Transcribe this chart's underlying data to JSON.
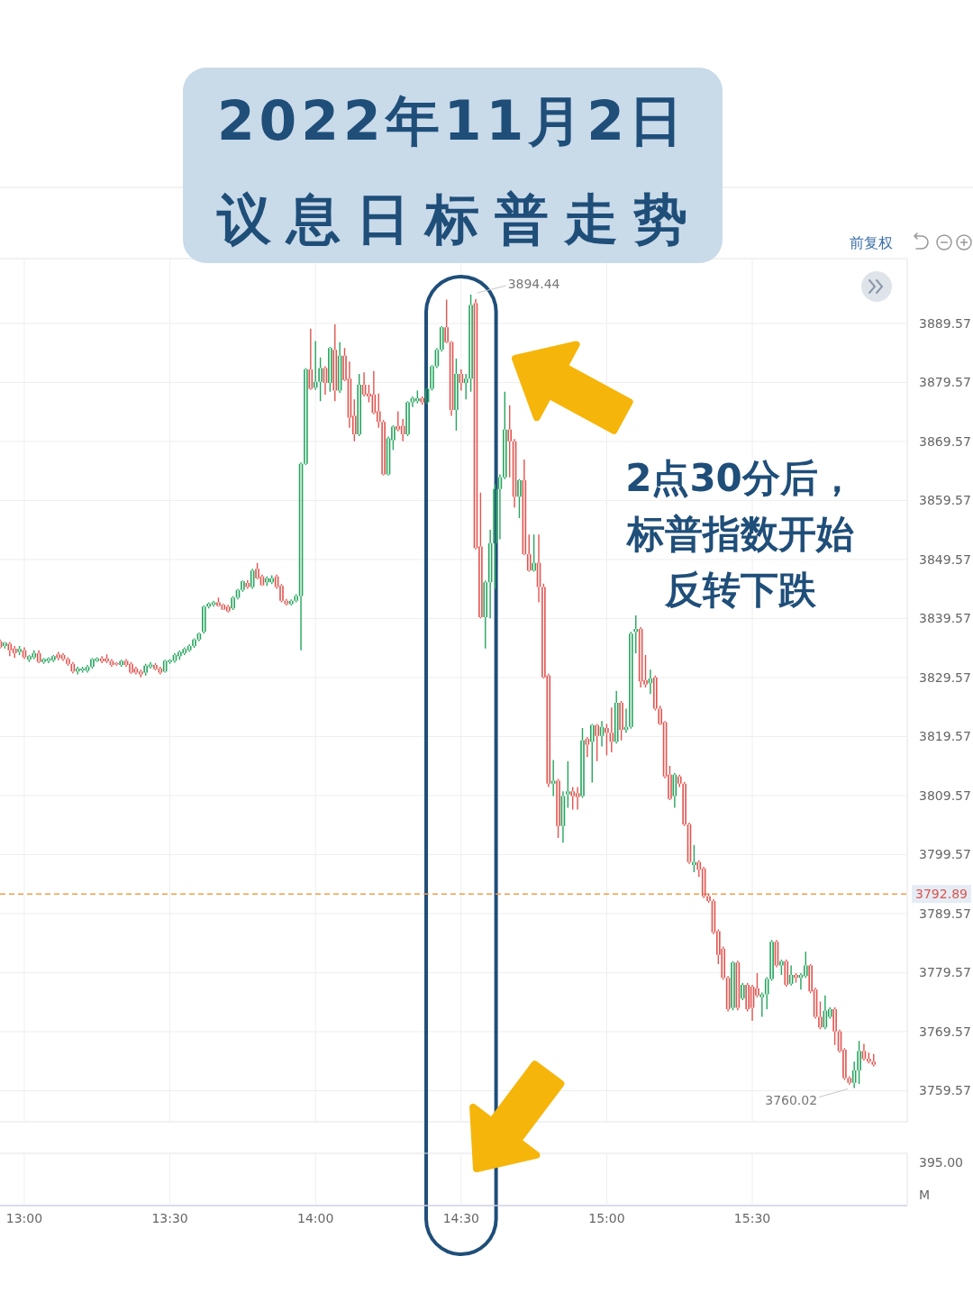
{
  "chart_data": {
    "type": "candlestick",
    "title": "2022年11月2日",
    "subtitle": "议息日标普走势",
    "x": [
      12.9167,
      12.9333,
      12.95,
      12.9667,
      12.9833,
      13,
      13.0167,
      13.0333,
      13.05,
      13.0667,
      13.0833,
      13.1,
      13.1167,
      13.1333,
      13.15,
      13.1667,
      13.1833,
      13.2,
      13.2167,
      13.2333,
      13.25,
      13.2667,
      13.2833,
      13.3,
      13.3167,
      13.3333,
      13.35,
      13.3667,
      13.3833,
      13.4,
      13.4167,
      13.4333,
      13.45,
      13.4667,
      13.4833,
      13.5,
      13.5167,
      13.5333,
      13.55,
      13.5667,
      13.5833,
      13.6,
      13.6167,
      13.6333,
      13.65,
      13.6667,
      13.6833,
      13.7,
      13.7167,
      13.7333,
      13.75,
      13.7667,
      13.7833,
      13.8,
      13.8167,
      13.8333,
      13.85,
      13.8667,
      13.8833,
      13.9,
      13.9167,
      13.9333,
      13.95,
      13.9667,
      13.9833,
      14,
      14.0167,
      14.0333,
      14.05,
      14.0667,
      14.0833,
      14.1,
      14.1167,
      14.1333,
      14.15,
      14.1667,
      14.1833,
      14.2,
      14.2167,
      14.2333,
      14.25,
      14.2667,
      14.2833,
      14.3,
      14.3167,
      14.3333,
      14.35,
      14.3667,
      14.3833,
      14.4,
      14.4167,
      14.4333,
      14.45,
      14.4667,
      14.4833,
      14.5,
      14.5167,
      14.5333,
      14.55,
      14.5667,
      14.5833,
      14.6,
      14.6167,
      14.6333,
      14.65,
      14.6667,
      14.6833,
      14.7,
      14.7167,
      14.7333,
      14.75,
      14.7667,
      14.7833,
      14.8,
      14.8167,
      14.8333,
      14.85,
      14.8667,
      14.8833,
      14.9,
      14.9167,
      14.9333,
      14.95,
      14.9667,
      14.9833,
      15,
      15.0167,
      15.0333,
      15.05,
      15.0667,
      15.0833,
      15.1,
      15.1167,
      15.1333,
      15.15,
      15.1667,
      15.1833,
      15.2,
      15.2167,
      15.2333,
      15.25,
      15.2667,
      15.2833,
      15.3,
      15.3167,
      15.3333,
      15.35,
      15.3667,
      15.3833,
      15.4,
      15.4167,
      15.4333,
      15.45,
      15.4667,
      15.4833,
      15.5,
      15.5167,
      15.5333,
      15.55,
      15.5667,
      15.5833,
      15.6,
      15.6167,
      15.6333,
      15.65,
      15.6667,
      15.6833,
      15.7,
      15.7167,
      15.7333,
      15.75,
      15.7667,
      15.7833,
      15.8,
      15.8167,
      15.8333,
      15.85,
      15.8667,
      15.8833,
      15.9,
      15.9167
    ],
    "ohlc": [
      [
        3835.7,
        3836.0,
        3834.5,
        3834.7
      ],
      [
        3834.9,
        3835.6,
        3834.5,
        3835.5
      ],
      [
        3835.3,
        3835.6,
        3833.2,
        3834.2
      ],
      [
        3834.5,
        3834.9,
        3832.9,
        3833.7
      ],
      [
        3833.9,
        3834.9,
        3833.4,
        3834.4
      ],
      [
        3834.2,
        3834.7,
        3832.7,
        3833.0
      ],
      [
        3832.6,
        3833.4,
        3832.2,
        3833.2
      ],
      [
        3833.0,
        3834.2,
        3832.7,
        3833.7
      ],
      [
        3833.7,
        3834.2,
        3832.0,
        3832.2
      ],
      [
        3832.2,
        3832.9,
        3831.9,
        3832.7
      ],
      [
        3832.4,
        3833.0,
        3832.0,
        3832.8
      ],
      [
        3832.5,
        3833.4,
        3832.2,
        3833.2
      ],
      [
        3833.5,
        3833.9,
        3832.5,
        3832.9
      ],
      [
        3833.4,
        3833.7,
        3832.4,
        3832.7
      ],
      [
        3832.7,
        3833.0,
        3831.6,
        3831.9
      ],
      [
        3831.9,
        3832.2,
        3830.3,
        3830.6
      ],
      [
        3830.6,
        3831.4,
        3830.1,
        3831.1
      ],
      [
        3830.8,
        3831.4,
        3830.4,
        3831.1
      ],
      [
        3830.7,
        3831.7,
        3830.4,
        3831.4
      ],
      [
        3831.4,
        3832.9,
        3831.1,
        3832.7
      ],
      [
        3832.4,
        3833.0,
        3832.2,
        3832.8
      ],
      [
        3832.8,
        3833.2,
        3832.0,
        3832.3
      ],
      [
        3832.8,
        3833.5,
        3832.0,
        3832.3
      ],
      [
        3832.4,
        3832.7,
        3831.4,
        3831.7
      ],
      [
        3832.0,
        3832.2,
        3831.6,
        3831.8
      ],
      [
        3831.7,
        3832.6,
        3831.4,
        3832.4
      ],
      [
        3832.4,
        3832.7,
        3831.4,
        3831.7
      ],
      [
        3831.9,
        3832.2,
        3830.2,
        3830.4
      ],
      [
        3831.1,
        3831.4,
        3830.1,
        3830.4
      ],
      [
        3830.6,
        3830.9,
        3829.6,
        3830.1
      ],
      [
        3830.4,
        3831.9,
        3829.9,
        3831.6
      ],
      [
        3831.4,
        3832.2,
        3831.1,
        3831.8
      ],
      [
        3831.7,
        3832.0,
        3830.8,
        3831.0
      ],
      [
        3831.1,
        3831.4,
        3830.1,
        3830.4
      ],
      [
        3830.6,
        3832.6,
        3830.4,
        3832.4
      ],
      [
        3832.2,
        3832.7,
        3831.9,
        3832.5
      ],
      [
        3832.4,
        3833.7,
        3832.1,
        3833.4
      ],
      [
        3833.2,
        3834.2,
        3832.6,
        3833.9
      ],
      [
        3833.7,
        3834.7,
        3833.4,
        3834.4
      ],
      [
        3834.2,
        3835.2,
        3833.9,
        3834.9
      ],
      [
        3834.9,
        3836.2,
        3834.6,
        3836.0
      ],
      [
        3836.0,
        3837.2,
        3835.7,
        3837.0
      ],
      [
        3837.3,
        3841.8,
        3837.0,
        3841.6
      ],
      [
        3841.6,
        3842.3,
        3841.3,
        3842.1
      ],
      [
        3841.9,
        3842.6,
        3841.6,
        3842.3
      ],
      [
        3842.3,
        3843.1,
        3841.6,
        3841.7
      ],
      [
        3841.9,
        3842.1,
        3841.0,
        3841.1
      ],
      [
        3841.6,
        3841.9,
        3840.6,
        3840.8
      ],
      [
        3841.3,
        3843.4,
        3841.0,
        3843.1
      ],
      [
        3843.1,
        3844.6,
        3842.8,
        3844.4
      ],
      [
        3844.4,
        3846.0,
        3844.1,
        3845.9
      ],
      [
        3845.6,
        3846.1,
        3844.6,
        3844.9
      ],
      [
        3844.9,
        3848.0,
        3844.6,
        3847.7
      ],
      [
        3848.0,
        3849.0,
        3846.2,
        3846.4
      ],
      [
        3846.7,
        3847.0,
        3845.1,
        3845.2
      ],
      [
        3845.7,
        3846.7,
        3845.1,
        3846.4
      ],
      [
        3845.7,
        3846.9,
        3845.4,
        3846.4
      ],
      [
        3846.7,
        3847.0,
        3844.6,
        3844.9
      ],
      [
        3845.1,
        3845.4,
        3842.3,
        3842.6
      ],
      [
        3842.6,
        3842.9,
        3841.8,
        3842.0
      ],
      [
        3842.0,
        3842.8,
        3841.8,
        3842.6
      ],
      [
        3842.6,
        3843.7,
        3842.3,
        3843.4
      ],
      [
        3843.4,
        3866.0,
        3834.2,
        3865.8
      ],
      [
        3865.8,
        3882.0,
        3865.6,
        3881.8
      ],
      [
        3881.8,
        3888.7,
        3878.3,
        3878.5
      ],
      [
        3878.7,
        3886.6,
        3878.3,
        3879.7
      ],
      [
        3879.7,
        3883.8,
        3876.4,
        3882.0
      ],
      [
        3882.0,
        3882.3,
        3877.5,
        3879.5
      ],
      [
        3879.5,
        3885.6,
        3878.0,
        3885.4
      ],
      [
        3885.1,
        3889.4,
        3876.4,
        3878.2
      ],
      [
        3878.2,
        3886.4,
        3877.8,
        3884.1
      ],
      [
        3884.1,
        3885.4,
        3879.8,
        3880.0
      ],
      [
        3880.2,
        3883.1,
        3871.9,
        3873.6
      ],
      [
        3873.9,
        3876.7,
        3869.6,
        3870.8
      ],
      [
        3870.8,
        3881.0,
        3870.5,
        3879.2
      ],
      [
        3879.2,
        3881.3,
        3877.2,
        3877.5
      ],
      [
        3877.7,
        3879.2,
        3876.2,
        3877.2
      ],
      [
        3877.5,
        3881.5,
        3874.2,
        3874.4
      ],
      [
        3874.7,
        3877.7,
        3871.9,
        3872.9
      ],
      [
        3872.9,
        3873.2,
        3863.8,
        3864.0
      ],
      [
        3864.0,
        3870.4,
        3863.8,
        3870.1
      ],
      [
        3869.8,
        3872.3,
        3868.1,
        3872.1
      ],
      [
        3872.2,
        3874.7,
        3871.3,
        3871.6
      ],
      [
        3872.2,
        3873.4,
        3869.6,
        3870.8
      ],
      [
        3870.8,
        3876.4,
        3870.5,
        3876.2
      ],
      [
        3876.2,
        3877.2,
        3875.4,
        3876.9
      ],
      [
        3876.4,
        3878.2,
        3876.0,
        3876.9
      ],
      [
        3876.9,
        3877.2,
        3875.8,
        3876.2
      ],
      [
        3876.2,
        3878.7,
        3875.9,
        3878.5
      ],
      [
        3878.5,
        3882.5,
        3878.2,
        3882.3
      ],
      [
        3882.3,
        3885.4,
        3882.0,
        3885.1
      ],
      [
        3885.1,
        3889.1,
        3884.8,
        3888.9
      ],
      [
        3888.9,
        3893.6,
        3886.2,
        3886.4
      ],
      [
        3886.4,
        3886.6,
        3873.9,
        3874.9
      ],
      [
        3874.9,
        3883.6,
        3871.4,
        3881.0
      ],
      [
        3881.0,
        3881.8,
        3878.2,
        3879.5
      ],
      [
        3879.5,
        3881.0,
        3876.7,
        3880.2
      ],
      [
        3880.2,
        3894.44,
        3878.0,
        3892.7
      ],
      [
        3893.0,
        3893.7,
        3851.3,
        3851.5
      ],
      [
        3851.8,
        3860.9,
        3839.6,
        3839.8
      ],
      [
        3839.8,
        3846.0,
        3834.5,
        3845.7
      ],
      [
        3845.7,
        3854.6,
        3839.6,
        3852.3
      ],
      [
        3852.3,
        3862.3,
        3844.6,
        3861.5
      ],
      [
        3861.5,
        3864.0,
        3853.0,
        3863.5
      ],
      [
        3863.5,
        3878.0,
        3863.2,
        3871.6
      ],
      [
        3871.6,
        3875.7,
        3863.5,
        3869.6
      ],
      [
        3869.6,
        3870.0,
        3858.4,
        3860.2
      ],
      [
        3860.2,
        3863.2,
        3856.6,
        3863.0
      ],
      [
        3863.0,
        3866.5,
        3850.3,
        3850.5
      ],
      [
        3850.5,
        3853.8,
        3847.5,
        3847.7
      ],
      [
        3847.7,
        3853.8,
        3847.5,
        3849.0
      ],
      [
        3849.0,
        3853.8,
        3842.3,
        3844.9
      ],
      [
        3844.9,
        3845.5,
        3829.4,
        3829.6
      ],
      [
        3829.9,
        3830.2,
        3811.0,
        3811.6
      ],
      [
        3811.6,
        3815.6,
        3809.5,
        3812.1
      ],
      [
        3812.1,
        3812.4,
        3802.4,
        3804.4
      ],
      [
        3804.4,
        3810.3,
        3801.6,
        3809.5
      ],
      [
        3809.8,
        3815.4,
        3807.5,
        3810.3
      ],
      [
        3810.3,
        3811.0,
        3807.2,
        3809.5
      ],
      [
        3810.0,
        3811.0,
        3807.2,
        3809.3
      ],
      [
        3809.5,
        3821.0,
        3809.2,
        3818.9
      ],
      [
        3819.2,
        3819.5,
        3816.1,
        3818.2
      ],
      [
        3818.7,
        3821.7,
        3811.8,
        3821.5
      ],
      [
        3821.5,
        3821.7,
        3815.4,
        3819.7
      ],
      [
        3819.7,
        3822.2,
        3817.9,
        3821.2
      ],
      [
        3821.0,
        3821.7,
        3816.4,
        3820.2
      ],
      [
        3820.2,
        3824.5,
        3816.9,
        3818.7
      ],
      [
        3818.7,
        3827.3,
        3818.4,
        3825.3
      ],
      [
        3825.3,
        3825.6,
        3818.9,
        3820.7
      ],
      [
        3820.7,
        3824.3,
        3820.2,
        3821.2
      ],
      [
        3821.2,
        3837.3,
        3820.9,
        3837.0
      ],
      [
        3837.3,
        3840.1,
        3833.7,
        3837.8
      ],
      [
        3837.8,
        3838.1,
        3827.9,
        3828.9
      ],
      [
        3829.1,
        3833.4,
        3827.9,
        3828.4
      ],
      [
        3828.6,
        3830.9,
        3826.8,
        3829.4
      ],
      [
        3829.6,
        3829.9,
        3824.0,
        3824.3
      ],
      [
        3824.3,
        3824.8,
        3821.5,
        3821.7
      ],
      [
        3822.0,
        3822.2,
        3812.5,
        3812.8
      ],
      [
        3813.1,
        3814.6,
        3808.8,
        3809.0
      ],
      [
        3809.5,
        3813.4,
        3807.5,
        3813.1
      ],
      [
        3812.8,
        3813.1,
        3811.0,
        3811.6
      ],
      [
        3811.6,
        3811.9,
        3804.4,
        3804.7
      ],
      [
        3804.7,
        3805.0,
        3798.0,
        3798.3
      ],
      [
        3797.8,
        3801.2,
        3796.6,
        3798.3
      ],
      [
        3798.3,
        3798.6,
        3795.8,
        3797.0
      ],
      [
        3797.2,
        3797.5,
        3792.2,
        3792.5
      ],
      [
        3792.5,
        3793.0,
        3791.4,
        3791.7
      ],
      [
        3791.7,
        3792.0,
        3786.1,
        3786.4
      ],
      [
        3786.6,
        3786.9,
        3781.0,
        3782.6
      ],
      [
        3783.6,
        3784.0,
        3778.4,
        3778.7
      ],
      [
        3778.7,
        3779.0,
        3773.0,
        3773.4
      ],
      [
        3773.6,
        3781.5,
        3773.2,
        3781.3
      ],
      [
        3781.3,
        3781.6,
        3773.2,
        3773.6
      ],
      [
        3775.2,
        3777.8,
        3774.9,
        3777.5
      ],
      [
        3777.5,
        3777.8,
        3773.0,
        3773.4
      ],
      [
        3777.2,
        3777.5,
        3771.4,
        3773.6
      ],
      [
        3776.9,
        3779.5,
        3775.4,
        3775.7
      ],
      [
        3775.4,
        3776.2,
        3772.1,
        3775.9
      ],
      [
        3775.9,
        3778.8,
        3773.4,
        3778.5
      ],
      [
        3778.5,
        3785.1,
        3778.2,
        3784.8
      ],
      [
        3784.8,
        3785.1,
        3780.5,
        3780.8
      ],
      [
        3780.8,
        3781.8,
        3779.2,
        3781.5
      ],
      [
        3781.5,
        3781.8,
        3777.2,
        3777.5
      ],
      [
        3777.7,
        3780.8,
        3777.4,
        3779.2
      ],
      [
        3779.2,
        3779.5,
        3777.9,
        3778.7
      ],
      [
        3778.7,
        3779.5,
        3776.7,
        3779.2
      ],
      [
        3779.0,
        3783.1,
        3778.7,
        3780.8
      ],
      [
        3780.8,
        3781.0,
        3776.1,
        3776.4
      ],
      [
        3776.7,
        3777.0,
        3771.8,
        3772.1
      ],
      [
        3772.1,
        3774.7,
        3770.0,
        3770.3
      ],
      [
        3770.3,
        3775.7,
        3770.0,
        3773.1
      ],
      [
        3772.1,
        3773.7,
        3771.8,
        3773.4
      ],
      [
        3773.4,
        3773.7,
        3767.3,
        3769.6
      ],
      [
        3769.6,
        3769.9,
        3766.0,
        3766.3
      ],
      [
        3766.5,
        3766.8,
        3761.4,
        3761.7
      ],
      [
        3761.7,
        3762.0,
        3760.6,
        3760.9
      ],
      [
        3760.9,
        3764.5,
        3760.02,
        3763.0
      ],
      [
        3763.0,
        3768.0,
        3760.7,
        3766.3
      ],
      [
        3766.3,
        3767.5,
        3764.7,
        3765.0
      ],
      [
        3765.0,
        3766.0,
        3764.2,
        3764.5
      ],
      [
        3764.5,
        3765.8,
        3763.7,
        3764.0
      ]
    ],
    "colors": [
      "#e2544f",
      "#26a55e",
      "#e2544f",
      "#e2544f",
      "#26a55e",
      "#e2544f",
      "#26a55e",
      "#26a55e",
      "#e2544f",
      "#26a55e",
      "#26a55e",
      "#26a55e",
      "#e2544f",
      "#e2544f",
      "#e2544f",
      "#e2544f",
      "#26a55e",
      "#26a55e",
      "#26a55e",
      "#26a55e",
      "#26a55e",
      "#e2544f",
      "#e2544f",
      "#e2544f",
      "#e2544f",
      "#26a55e",
      "#e2544f",
      "#e2544f",
      "#e2544f",
      "#e2544f",
      "#26a55e",
      "#26a55e",
      "#e2544f",
      "#e2544f",
      "#26a55e",
      "#26a55e",
      "#26a55e",
      "#26a55e",
      "#26a55e",
      "#26a55e",
      "#26a55e",
      "#26a55e",
      "#26a55e",
      "#26a55e",
      "#26a55e",
      "#e2544f",
      "#e2544f",
      "#e2544f",
      "#26a55e",
      "#26a55e",
      "#26a55e",
      "#e2544f",
      "#26a55e",
      "#e2544f",
      "#e2544f",
      "#26a55e",
      "#26a55e",
      "#e2544f",
      "#e2544f",
      "#e2544f",
      "#26a55e",
      "#26a55e",
      "#26a55e",
      "#26a55e",
      "#e2544f",
      "#26a55e",
      "#26a55e",
      "#e2544f",
      "#26a55e",
      "#e2544f",
      "#26a55e",
      "#e2544f",
      "#e2544f",
      "#e2544f",
      "#26a55e",
      "#e2544f",
      "#e2544f",
      "#e2544f",
      "#e2544f",
      "#e2544f",
      "#26a55e",
      "#26a55e",
      "#e2544f",
      "#e2544f",
      "#26a55e",
      "#26a55e",
      "#26a55e",
      "#e2544f",
      "#26a55e",
      "#26a55e",
      "#26a55e",
      "#26a55e",
      "#e2544f",
      "#e2544f",
      "#26a55e",
      "#e2544f",
      "#26a55e",
      "#26a55e",
      "#e2544f",
      "#e2544f",
      "#26a55e",
      "#26a55e",
      "#26a55e",
      "#26a55e",
      "#26a55e",
      "#e2544f",
      "#e2544f",
      "#26a55e",
      "#e2544f",
      "#e2544f",
      "#26a55e",
      "#e2544f",
      "#e2544f",
      "#e2544f",
      "#26a55e",
      "#e2544f",
      "#26a55e",
      "#26a55e",
      "#e2544f",
      "#e2544f",
      "#26a55e",
      "#e2544f",
      "#26a55e",
      "#e2544f",
      "#26a55e",
      "#e2544f",
      "#e2544f",
      "#26a55e",
      "#e2544f",
      "#26a55e",
      "#26a55e",
      "#26a55e",
      "#e2544f",
      "#e2544f",
      "#26a55e",
      "#e2544f",
      "#e2544f",
      "#e2544f",
      "#e2544f",
      "#26a55e",
      "#e2544f",
      "#e2544f",
      "#e2544f",
      "#26a55e",
      "#e2544f",
      "#e2544f",
      "#e2544f",
      "#e2544f",
      "#e2544f",
      "#e2544f",
      "#e2544f",
      "#26a55e",
      "#e2544f",
      "#26a55e",
      "#e2544f",
      "#e2544f",
      "#e2544f",
      "#26a55e",
      "#26a55e",
      "#26a55e",
      "#e2544f",
      "#26a55e",
      "#e2544f",
      "#26a55e",
      "#e2544f",
      "#26a55e",
      "#26a55e",
      "#e2544f",
      "#e2544f",
      "#e2544f",
      "#26a55e",
      "#26a55e",
      "#e2544f",
      "#e2544f",
      "#e2544f",
      "#e2544f",
      "#26a55e",
      "#26a55e",
      "#e2544f",
      "#e2544f",
      "#e2544f"
    ],
    "xlim": [
      12.9165,
      16.032
    ],
    "xticks": [
      {
        "value": 13,
        "label": "13:00"
      },
      {
        "value": 13.5,
        "label": "13:30"
      },
      {
        "value": 14,
        "label": "14:00"
      },
      {
        "value": 14.5,
        "label": "14:30"
      },
      {
        "value": 15,
        "label": "15:00"
      },
      {
        "value": 15.5,
        "label": "15:30"
      }
    ],
    "ylim": [
      3754.3,
      3900.56
    ],
    "yticks": [
      3759.57,
      3769.57,
      3779.57,
      3789.57,
      3799.57,
      3809.57,
      3819.57,
      3829.57,
      3839.57,
      3849.57,
      3859.57,
      3869.57,
      3879.57,
      3889.57
    ],
    "grid": true,
    "ref_lines": [
      {
        "axis": "y",
        "value": 3792.89,
        "label": "3792.89",
        "color": "#f0a04b",
        "line_style": "dashed"
      }
    ],
    "bands": [
      {
        "axis": "x",
        "from": 14.38,
        "to": 14.62,
        "color": "#1f4e79"
      }
    ],
    "annotations": [
      {
        "text": "3894.44",
        "x": 14.5333,
        "y": 3894.44
      },
      {
        "text": "3760.02",
        "x": 15.85,
        "y": 3760.02
      },
      "2点30分后，标普指数开始反转下跌",
      "前复权",
      "395.00",
      "M"
    ]
  }
}
